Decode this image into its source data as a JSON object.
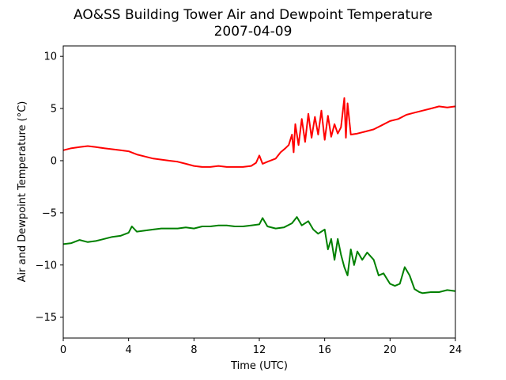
{
  "chart_data": {
    "type": "line",
    "title": "AO&SS Building Tower Air and Dewpoint Temperature",
    "subtitle": "2007-04-09",
    "xlabel": "Time (UTC)",
    "ylabel": "Air and Dewpoint Temperature (°C)",
    "xlim": [
      0,
      24
    ],
    "ylim": [
      -17,
      11
    ],
    "xticks": [
      0,
      4,
      8,
      12,
      16,
      20,
      24
    ],
    "yticks": [
      -15,
      -10,
      -5,
      0,
      5,
      10
    ],
    "xtick_labels": [
      "0",
      "4",
      "8",
      "12",
      "16",
      "20",
      "24"
    ],
    "ytick_labels": [
      "−15",
      "−10",
      "−5",
      "0",
      "5",
      "10"
    ],
    "grid": false,
    "series": [
      {
        "color": "#ff0000",
        "x": [
          0,
          0.5,
          1,
          1.5,
          2,
          2.5,
          3,
          3.5,
          4,
          4.5,
          5,
          5.5,
          6,
          6.5,
          7,
          7.5,
          8,
          8.5,
          9,
          9.5,
          10,
          10.5,
          11,
          11.5,
          11.8,
          12,
          12.2,
          12.5,
          13,
          13.3,
          13.6,
          13.8,
          14,
          14.1,
          14.2,
          14.4,
          14.6,
          14.8,
          15,
          15.2,
          15.4,
          15.6,
          15.8,
          16,
          16.2,
          16.4,
          16.6,
          16.8,
          17,
          17.2,
          17.3,
          17.4,
          17.6,
          18,
          18.5,
          19,
          19.5,
          20,
          20.5,
          21,
          21.5,
          22,
          22.5,
          23,
          23.5,
          24
        ],
        "values": [
          1.0,
          1.2,
          1.3,
          1.4,
          1.3,
          1.2,
          1.1,
          1.0,
          0.9,
          0.6,
          0.4,
          0.2,
          0.1,
          0.0,
          -0.1,
          -0.3,
          -0.5,
          -0.6,
          -0.6,
          -0.5,
          -0.6,
          -0.6,
          -0.6,
          -0.5,
          -0.2,
          0.5,
          -0.3,
          -0.1,
          0.2,
          0.8,
          1.2,
          1.5,
          2.5,
          0.8,
          3.5,
          1.5,
          4.0,
          1.8,
          4.5,
          2.2,
          4.2,
          2.5,
          4.8,
          2.0,
          4.3,
          2.3,
          3.5,
          2.6,
          3.2,
          6.0,
          2.2,
          5.5,
          2.5,
          2.6,
          2.8,
          3.0,
          3.4,
          3.8,
          4.0,
          4.4,
          4.6,
          4.8,
          5.0,
          5.2,
          5.1,
          5.2
        ]
      },
      {
        "color": "#008000",
        "x": [
          0,
          0.5,
          1,
          1.5,
          2,
          2.5,
          3,
          3.5,
          4,
          4.2,
          4.5,
          5,
          5.5,
          6,
          6.5,
          7,
          7.5,
          8,
          8.5,
          9,
          9.5,
          10,
          10.5,
          11,
          11.5,
          12,
          12.2,
          12.5,
          13,
          13.5,
          14,
          14.3,
          14.6,
          15,
          15.3,
          15.6,
          16,
          16.2,
          16.4,
          16.6,
          16.8,
          17,
          17.2,
          17.4,
          17.6,
          17.8,
          18,
          18.3,
          18.6,
          19,
          19.3,
          19.6,
          20,
          20.3,
          20.6,
          20.9,
          21.2,
          21.5,
          21.8,
          22,
          22.5,
          23,
          23.5,
          24
        ],
        "values": [
          -8.0,
          -7.9,
          -7.6,
          -7.8,
          -7.7,
          -7.5,
          -7.3,
          -7.2,
          -6.9,
          -6.3,
          -6.8,
          -6.7,
          -6.6,
          -6.5,
          -6.5,
          -6.5,
          -6.4,
          -6.5,
          -6.3,
          -6.3,
          -6.2,
          -6.2,
          -6.3,
          -6.3,
          -6.2,
          -6.1,
          -5.5,
          -6.3,
          -6.5,
          -6.4,
          -6.0,
          -5.4,
          -6.2,
          -5.8,
          -6.6,
          -7.0,
          -6.6,
          -8.5,
          -7.5,
          -9.5,
          -7.5,
          -9.0,
          -10.2,
          -11.0,
          -8.5,
          -10.0,
          -8.7,
          -9.5,
          -8.8,
          -9.5,
          -11.0,
          -10.8,
          -11.8,
          -12.0,
          -11.8,
          -10.2,
          -11.0,
          -12.3,
          -12.6,
          -12.7,
          -12.6,
          -12.6,
          -12.4,
          -12.5
        ]
      }
    ]
  }
}
